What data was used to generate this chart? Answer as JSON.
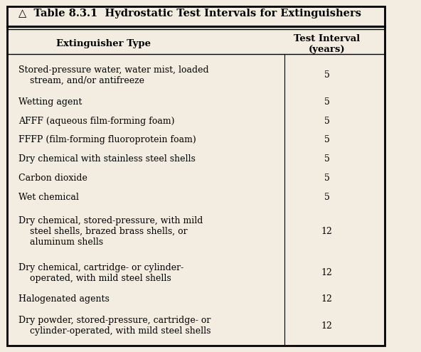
{
  "title": "△  Table 8.3.1  Hydrostatic Test Intervals for Extinguishers",
  "col1_header": "Extinguisher Type",
  "col2_header": "Test Interval\n(years)",
  "rows": [
    [
      "Stored-pressure water, water mist, loaded\n    stream, and/or antifreeze",
      "5"
    ],
    [
      "Wetting agent",
      "5"
    ],
    [
      "AFFF (aqueous film-forming foam)",
      "5"
    ],
    [
      "FFFP (film-forming fluoroprotein foam)",
      "5"
    ],
    [
      "Dry chemical with stainless steel shells",
      "5"
    ],
    [
      "Carbon dioxide",
      "5"
    ],
    [
      "Wet chemical",
      "5"
    ],
    [
      "Dry chemical, stored-pressure, with mild\n    steel shells, brazed brass shells, or\n    aluminum shells",
      "12"
    ],
    [
      "Dry chemical, cartridge- or cylinder-\n    operated, with mild steel shells",
      "12"
    ],
    [
      "Halogenated agents",
      "12"
    ],
    [
      "Dry powder, stored-pressure, cartridge- or\n    cylinder-operated, with mild steel shells",
      "12"
    ]
  ],
  "bg_color": "#f2ede0",
  "text_color": "#000000",
  "header_fontsize": 9.5,
  "title_fontsize": 10.5,
  "row_fontsize": 9.0,
  "fig_width": 5.92,
  "fig_height": 4.95
}
